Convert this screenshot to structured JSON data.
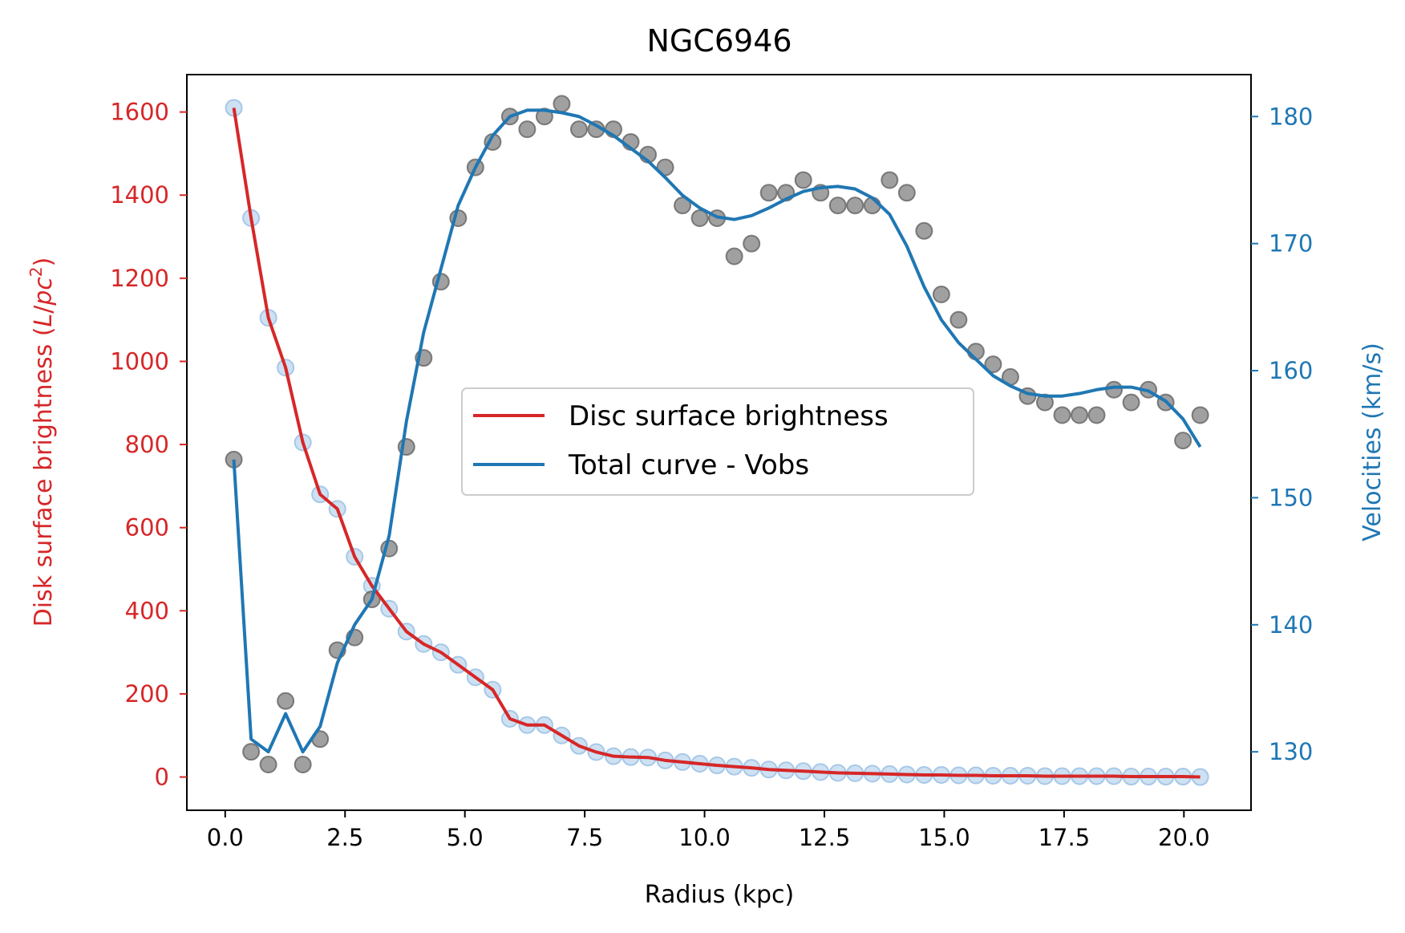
{
  "chart_data": {
    "type": "line",
    "title": "NGC6946",
    "xlabel": "Radius (kpc)",
    "ylabel_left": "Disk surface brightness (L/pc²)",
    "ylabel_left_parts": {
      "text": "Disk surface brightness (",
      "L": "L",
      "slash": "/",
      "pc": "pc",
      "exp": "2",
      "close": ")"
    },
    "ylabel_right": "Velocities (km/s)",
    "xlim": [
      -0.8,
      21.4
    ],
    "ylim_left": [
      -80,
      1690
    ],
    "ylim_right": [
      125.4,
      183.3
    ],
    "xticks": [
      0,
      2.5,
      5,
      7.5,
      10,
      12.5,
      15,
      17.5,
      20
    ],
    "xtick_labels": [
      "0.0",
      "2.5",
      "5.0",
      "7.5",
      "10.0",
      "12.5",
      "15.0",
      "17.5",
      "20.0"
    ],
    "yticks_left": [
      0,
      200,
      400,
      600,
      800,
      1000,
      1200,
      1400,
      1600
    ],
    "ytick_labels_left": [
      "0",
      "200",
      "400",
      "600",
      "800",
      "1000",
      "1200",
      "1400",
      "1600"
    ],
    "yticks_right": [
      130,
      140,
      150,
      160,
      170,
      180
    ],
    "ytick_labels_right": [
      "130",
      "140",
      "150",
      "160",
      "170",
      "180"
    ],
    "colors": {
      "left_axis": "#d62728",
      "right_axis": "#1f77b4",
      "disc_line": "#d62728",
      "vobs_line": "#1f77b4",
      "brightness_points": "#a6c8e8",
      "velocity_points": "#808080"
    },
    "legend": {
      "position": "center-right",
      "entries": [
        "Disc surface brightness",
        "Total curve - Vobs"
      ]
    },
    "grid": false,
    "series": [
      {
        "name": "Disc surface brightness",
        "axis": "left",
        "x": [
          0.18,
          0.54,
          0.9,
          1.26,
          1.62,
          1.98,
          2.34,
          2.7,
          3.06,
          3.42,
          3.78,
          4.14,
          4.5,
          4.86,
          5.22,
          5.58,
          5.94,
          6.3,
          6.66,
          7.02,
          7.38,
          7.74,
          8.1,
          8.46,
          8.82,
          9.18,
          9.54,
          9.9,
          10.26,
          10.62,
          10.98,
          11.34,
          11.7,
          12.06,
          12.42,
          12.78,
          13.14,
          13.5,
          13.86,
          14.22,
          14.58,
          14.94,
          15.3,
          15.66,
          16.02,
          16.38,
          16.74,
          17.1,
          17.46,
          17.82,
          18.18,
          18.54,
          18.9,
          19.26,
          19.62,
          19.98,
          20.34
        ],
        "y": [
          1610,
          1345,
          1105,
          985,
          805,
          680,
          645,
          530,
          460,
          405,
          350,
          320,
          300,
          270,
          240,
          210,
          140,
          125,
          125,
          100,
          75,
          60,
          50,
          48,
          47,
          40,
          36,
          32,
          28,
          25,
          22,
          18,
          16,
          14,
          12,
          10,
          9,
          8,
          7,
          6,
          5,
          5,
          4,
          4,
          3,
          3,
          3,
          2,
          2,
          2,
          2,
          2,
          1,
          1,
          1,
          1,
          0
        ]
      },
      {
        "name": "Total curve - Vobs",
        "axis": "right",
        "x": [
          0.18,
          0.54,
          0.9,
          1.26,
          1.62,
          1.98,
          2.34,
          2.7,
          3.06,
          3.42,
          3.78,
          4.14,
          4.5,
          4.86,
          5.22,
          5.58,
          5.94,
          6.3,
          6.66,
          7.02,
          7.38,
          7.74,
          8.1,
          8.46,
          8.82,
          9.18,
          9.54,
          9.9,
          10.26,
          10.62,
          10.98,
          11.34,
          11.7,
          12.06,
          12.42,
          12.78,
          13.14,
          13.5,
          13.86,
          14.22,
          14.58,
          14.94,
          15.3,
          15.66,
          16.02,
          16.38,
          16.74,
          17.1,
          17.46,
          17.82,
          18.18,
          18.54,
          18.9,
          19.26,
          19.62,
          19.98,
          20.34
        ],
        "y": [
          153,
          130,
          129,
          134,
          129,
          131,
          138,
          139,
          142,
          146,
          154,
          161,
          167,
          172,
          176,
          178,
          180,
          179,
          180,
          181,
          179,
          179,
          179,
          178,
          177,
          176,
          173,
          172,
          172,
          169,
          170,
          174,
          174,
          175,
          174,
          173,
          173,
          173,
          175,
          174,
          171,
          166,
          164,
          161.5,
          160.5,
          159.5,
          158,
          157.5,
          156.5,
          156.5,
          156.5,
          158.5,
          157.5,
          158.5,
          157.5,
          154.5,
          156.5
        ]
      }
    ],
    "vobs_curve_y": [
      153,
      131,
      130,
      133,
      130,
      132,
      137,
      140,
      142,
      147,
      156,
      163,
      168,
      173,
      176,
      178.5,
      180,
      180.5,
      180.5,
      180.3,
      180,
      179.3,
      178.5,
      177.5,
      176.5,
      175.2,
      173.8,
      172.8,
      172.1,
      171.9,
      172.2,
      172.8,
      173.5,
      174.1,
      174.4,
      174.5,
      174.3,
      173.6,
      172.3,
      169.8,
      166.6,
      164.0,
      162.2,
      160.9,
      159.6,
      158.8,
      158.2,
      158.0,
      158.0,
      158.2,
      158.5,
      158.7,
      158.7,
      158.4,
      157.6,
      156.2,
      154.0
    ]
  }
}
